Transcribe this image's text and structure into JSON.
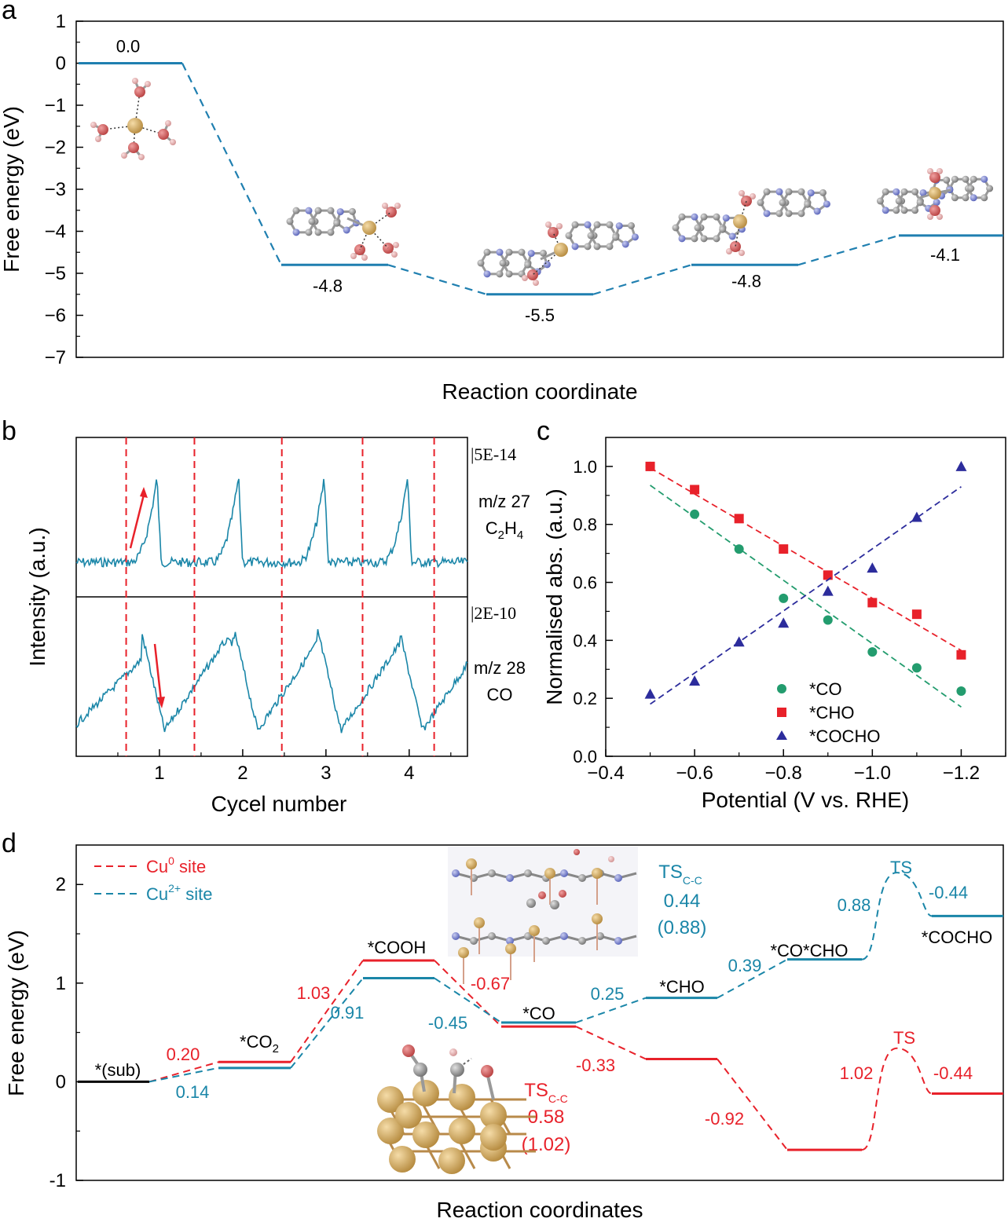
{
  "colors": {
    "teal": "#1f7fb0",
    "trace": "#1a86a8",
    "red": "#e8212a",
    "green": "#239c6e",
    "navy": "#2c2c9c",
    "cu_atom": "#c8a060",
    "o_atom": "#cc5555",
    "h_atom": "#e8a8a8",
    "n_atom": "#7a85d0",
    "c_atom": "#9a9a9a"
  },
  "chart_data": [
    {
      "panel": "a",
      "type": "line",
      "xlabel": "Reaction coordinate",
      "ylabel": "Free energy (eV)",
      "ylim": [
        -7,
        1
      ],
      "yticks": [
        1,
        0,
        -1,
        -2,
        -3,
        -4,
        -5,
        -6,
        -7
      ],
      "ytick_labels": [
        "1",
        "0",
        "−1",
        "−2",
        "−3",
        "−4",
        "−5",
        "−6",
        "−7"
      ],
      "series": [
        {
          "values": [
            0.0,
            -4.8,
            -5.5,
            -4.8,
            -4.1
          ],
          "labels": [
            "0.0",
            "-4.8",
            "-5.5",
            "-4.8",
            "-4.1"
          ]
        }
      ]
    },
    {
      "panel": "b",
      "type": "line",
      "xlabel": "Cycel number",
      "ylabel": "Intensity (a.u.)",
      "xlim": [
        0.0,
        4.7
      ],
      "xticks": [
        1,
        2,
        3,
        4
      ],
      "xtick_labels": [
        "1",
        "2",
        "3",
        "4"
      ],
      "dividers_x": [
        0.6,
        1.42,
        2.47,
        3.44,
        4.3
      ],
      "traces": [
        {
          "scale": "|5E-14",
          "mz": "m/z 27",
          "species": "C",
          "species_sub1": "2",
          "species_mid": "H",
          "species_sub2": "4",
          "peaks_x": [
            0.97,
            1.95,
            2.98,
            3.98
          ]
        },
        {
          "scale": "|2E-10",
          "mz": "m/z 28",
          "species": "CO",
          "peaks_x": [
            0.78,
            1.9,
            2.9,
            3.88
          ]
        }
      ]
    },
    {
      "panel": "c",
      "type": "scatter",
      "xlabel": "Potential (V vs. RHE)",
      "ylabel": "Normalised abs. (a.u.)",
      "xlim": [
        -0.4,
        -1.3
      ],
      "ylim": [
        0.0,
        1.1
      ],
      "xticks": [
        -0.4,
        -0.6,
        -0.8,
        -1.0,
        -1.2
      ],
      "xtick_labels": [
        "−0.4",
        "−0.6",
        "−0.8",
        "−1.0",
        "−1.2"
      ],
      "yticks": [
        0.0,
        0.2,
        0.4,
        0.6,
        0.8,
        1.0
      ],
      "ytick_labels": [
        "0.0",
        "0.2",
        "0.4",
        "0.6",
        "0.8",
        "1.0"
      ],
      "legend_position": "bottom-right",
      "x": [
        -0.5,
        -0.6,
        -0.7,
        -0.8,
        -0.9,
        -1.0,
        -1.1,
        -1.2
      ],
      "series": [
        {
          "name": "*CO",
          "marker": "circle",
          "values": [
            1.0,
            0.835,
            0.715,
            0.545,
            0.47,
            0.36,
            0.305,
            0.225
          ],
          "fit": [
            0.935,
            0.17
          ]
        },
        {
          "name": "*CHO",
          "marker": "square",
          "values": [
            1.0,
            0.92,
            0.82,
            0.715,
            0.625,
            0.53,
            0.49,
            0.35
          ],
          "fit": [
            0.995,
            0.365
          ]
        },
        {
          "name": "*COCHO",
          "marker": "triangle",
          "values": [
            0.215,
            0.26,
            0.395,
            0.46,
            0.57,
            0.65,
            0.825,
            1.0
          ],
          "fit": [
            0.18,
            0.93
          ]
        }
      ]
    },
    {
      "panel": "d",
      "type": "line",
      "xlabel": "Reaction coordinates",
      "ylabel": "Free energy (eV)",
      "ylim": [
        -1,
        2.4
      ],
      "yticks": [
        2,
        1,
        0,
        -1
      ],
      "ytick_labels": [
        "2",
        "1",
        "0",
        "-1"
      ],
      "legend_position": "top-left",
      "series": [
        {
          "name_base": "Cu",
          "name_sup": "0",
          "name_rest": " site",
          "levels": [
            0.0,
            0.2,
            1.23,
            0.56,
            0.23,
            -0.69,
            -0.12
          ],
          "ts_peak": 0.34,
          "step_labels": [
            "0.20",
            "1.03",
            "-0.67",
            "-0.33",
            "-0.92",
            "1.02",
            "-0.44"
          ],
          "ts_label": "TS"
        },
        {
          "name_base": "Cu",
          "name_sup": "2+",
          "name_rest": " site",
          "levels": [
            0.0,
            0.14,
            1.05,
            0.6,
            0.85,
            1.24,
            1.68
          ],
          "ts_peak": 2.12,
          "step_labels": [
            "0.14",
            "0.91",
            "-0.45",
            "0.25",
            "0.39",
            "0.88",
            "-0.44"
          ],
          "ts_label": "TS"
        }
      ],
      "state_labels": {
        "sub": "*(sub)",
        "co2_base": "*CO",
        "co2_sub": "2",
        "cooh": "*COOH",
        "co": "*CO",
        "cho": "*CHO",
        "cocho_int": "*CO*CHO",
        "cocho": "*COCHO"
      },
      "ts_annotations": [
        {
          "label": "TS",
          "sub": "C-C",
          "value": "0.44",
          "paren": "(0.88)"
        },
        {
          "label": "TS",
          "sub": "C-C",
          "value": "0.58",
          "paren": "(1.02)"
        }
      ]
    }
  ],
  "panel_letters": [
    "a",
    "b",
    "c",
    "d"
  ]
}
